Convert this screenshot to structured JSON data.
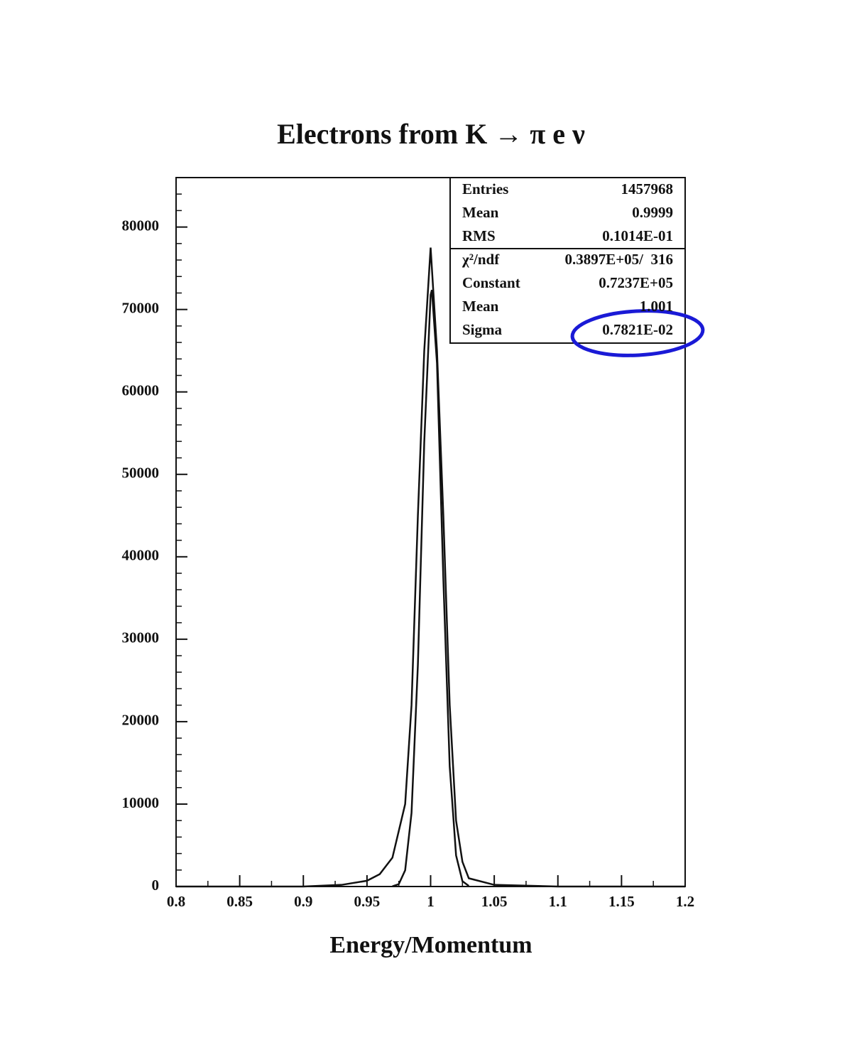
{
  "chart_data": {
    "type": "line",
    "title": "Electrons from K → π e ν",
    "x_label": "Energy/Momentum",
    "xlim": [
      0.8,
      1.2
    ],
    "xticks": [
      0.8,
      0.85,
      0.9,
      0.95,
      1,
      1.05,
      1.1,
      1.15,
      1.2
    ],
    "ylim": [
      0,
      86000
    ],
    "yticks": [
      0,
      10000,
      20000,
      30000,
      40000,
      50000,
      60000,
      70000,
      80000
    ],
    "series": [
      {
        "color": "#111111",
        "x": [
          0.8,
          0.9,
          0.93,
          0.95,
          0.96,
          0.97,
          0.98,
          0.985,
          0.99,
          0.995,
          1.0,
          1.005,
          1.01,
          1.015,
          1.02,
          1.025,
          1.03,
          1.05,
          1.1,
          1.2
        ],
        "values": [
          0,
          0,
          200,
          700,
          1500,
          3500,
          10000,
          22000,
          45000,
          65000,
          77500,
          65000,
          45000,
          22000,
          8000,
          3000,
          1000,
          200,
          0,
          0
        ]
      },
      {
        "color": "#111111",
        "x": [
          0.97,
          0.975,
          0.98,
          0.985,
          0.99,
          0.995,
          1.0,
          1.001,
          1.005,
          1.01,
          1.015,
          1.02,
          1.025,
          1.03
        ],
        "values": [
          28,
          289,
          1970,
          8930,
          26900,
          53900,
          71780,
          72370,
          63490,
          37330,
          14580,
          3780,
          650,
          75
        ]
      }
    ],
    "stats": [
      [
        "Entries",
        "1457968"
      ],
      [
        "Mean",
        "0.9999"
      ],
      [
        "RMS",
        "0.1014E-01"
      ]
    ],
    "fit_stats": [
      [
        "χ²/ndf",
        "0.3897E+05/  316"
      ],
      [
        "Constant",
        "0.7237E+05"
      ],
      [
        "Mean",
        "1.001"
      ],
      [
        "Sigma",
        "0.7821E-02"
      ]
    ]
  }
}
